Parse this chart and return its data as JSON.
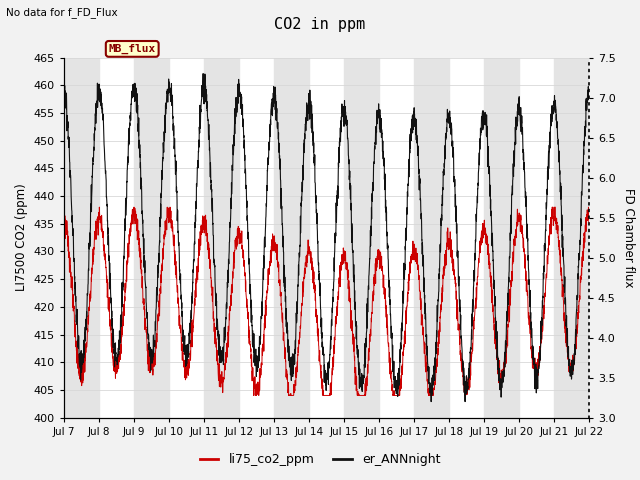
{
  "title": "CO2 in ppm",
  "top_left_text": "No data for f_FD_Flux",
  "ylabel_left": "LI7500 CO2 (ppm)",
  "ylabel_right": "FD Chamber flux",
  "ylim_left": [
    400,
    465
  ],
  "ylim_right": [
    3.0,
    7.5
  ],
  "yticks_left": [
    400,
    405,
    410,
    415,
    420,
    425,
    430,
    435,
    440,
    445,
    450,
    455,
    460,
    465
  ],
  "yticks_right": [
    3.0,
    3.5,
    4.0,
    4.5,
    5.0,
    5.5,
    6.0,
    6.5,
    7.0,
    7.5
  ],
  "xtick_labels": [
    "Jul 7",
    "Jul 8",
    "Jul 9",
    "Jul 10",
    "Jul 11",
    "Jul 12",
    "Jul 13",
    "Jul 14",
    "Jul 15",
    "Jul 16",
    "Jul 17",
    "Jul 18",
    "Jul 19",
    "Jul 20",
    "Jul 21",
    "Jul 22"
  ],
  "legend_label1": "li75_co2_ppm",
  "legend_label2": "er_ANNnight",
  "legend_color1": "#cc0000",
  "legend_color2": "#111111",
  "mb_flux_label": "MB_flux",
  "mb_flux_bg": "#ffffcc",
  "mb_flux_border": "#880000",
  "grid_color": "#d8d8d8",
  "bg_color": "#f2f2f2",
  "plot_bg": "#ffffff",
  "line_color_red": "#cc0000",
  "line_color_black": "#111111",
  "band_color": "#e4e4e4"
}
